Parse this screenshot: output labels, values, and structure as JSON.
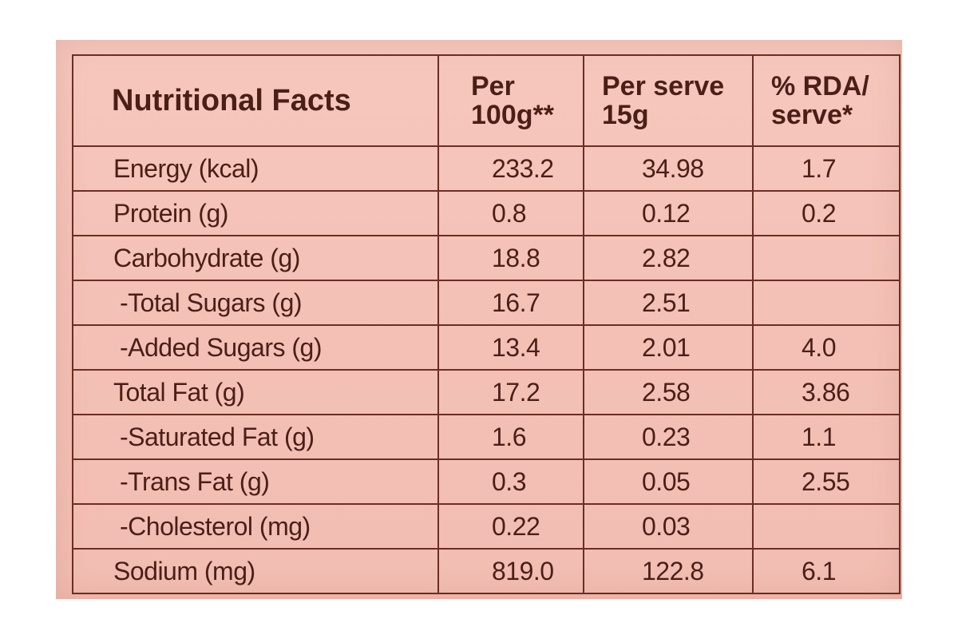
{
  "table": {
    "headers": {
      "title": "Nutritional Facts",
      "per_100g": "Per 100g**",
      "per_serve": "Per serve 15g",
      "rda": "% RDA/ serve*"
    },
    "rows": [
      {
        "name": "Energy (kcal)",
        "per_100g": "233.2",
        "per_serve": "34.98",
        "rda": "1.7"
      },
      {
        "name": "Protein (g)",
        "per_100g": "0.8",
        "per_serve": "0.12",
        "rda": "0.2"
      },
      {
        "name": "Carbohydrate (g)",
        "per_100g": "18.8",
        "per_serve": "2.82",
        "rda": ""
      },
      {
        "name": "-Total Sugars (g)",
        "per_100g": "16.7",
        "per_serve": "2.51",
        "rda": ""
      },
      {
        "name": "-Added Sugars (g)",
        "per_100g": "13.4",
        "per_serve": "2.01",
        "rda": "4.0"
      },
      {
        "name": "Total Fat (g)",
        "per_100g": "17.2",
        "per_serve": "2.58",
        "rda": "3.86"
      },
      {
        "name": "-Saturated Fat (g)",
        "per_100g": "1.6",
        "per_serve": "0.23",
        "rda": "1.1"
      },
      {
        "name": "-Trans Fat (g)",
        "per_100g": "0.3",
        "per_serve": "0.05",
        "rda": "2.55"
      },
      {
        "name": "-Cholesterol (mg)",
        "per_100g": "0.22",
        "per_serve": "0.03",
        "rda": ""
      },
      {
        "name": "Sodium (mg)",
        "per_100g": "819.0",
        "per_serve": "122.8",
        "rda": "6.1"
      }
    ]
  },
  "colors": {
    "label_background": "#f4c1b7",
    "ink": "#4a1f18",
    "rule": "#6b2e22"
  }
}
